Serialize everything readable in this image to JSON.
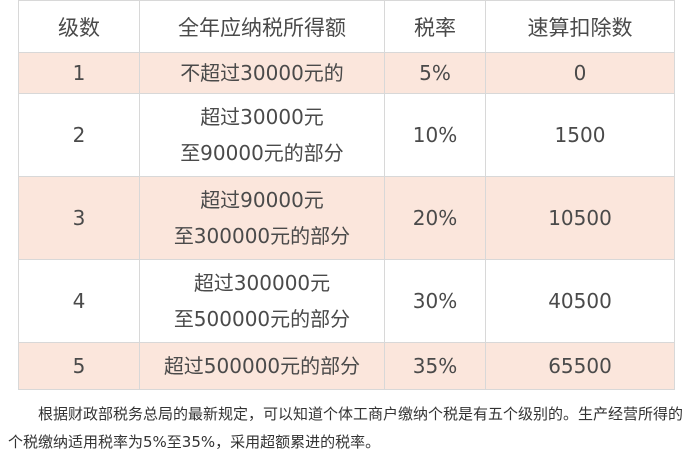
{
  "table": {
    "headers": {
      "level": "级数",
      "income": "全年应纳税所得额",
      "rate": "税率",
      "deduction": "速算扣除数"
    },
    "rows": [
      {
        "level": "1",
        "income_lines": [
          "不超过30000元的"
        ],
        "rate": "5%",
        "deduction": "0"
      },
      {
        "level": "2",
        "income_lines": [
          "超过30000元",
          "至90000元的部分"
        ],
        "rate": "10%",
        "deduction": "1500"
      },
      {
        "level": "3",
        "income_lines": [
          "超过90000元",
          "至300000元的部分"
        ],
        "rate": "20%",
        "deduction": "10500"
      },
      {
        "level": "4",
        "income_lines": [
          "超过300000元",
          "至500000元的部分"
        ],
        "rate": "30%",
        "deduction": "40500"
      },
      {
        "level": "5",
        "income_lines": [
          "超过500000元的部分"
        ],
        "rate": "35%",
        "deduction": "65500"
      }
    ]
  },
  "note": {
    "text": "根据财政部税务总局的最新规定，可以知道个体工商户缴纳个税是有五个级别的。生产经营所得的个税缴纳适用税率为5%至35%，采用超额累进的税率。"
  },
  "colors": {
    "row_highlight": "#fbe6dc",
    "border": "#d8d8d8",
    "text": "#4a4a4a"
  }
}
